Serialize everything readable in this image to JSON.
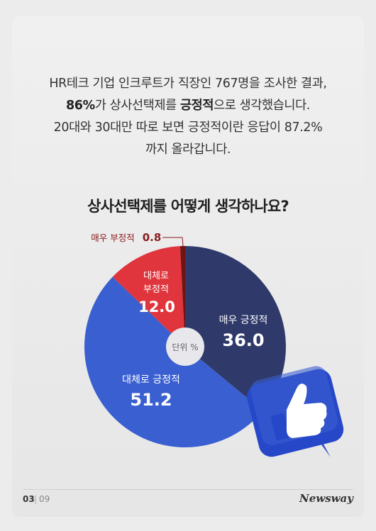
{
  "intro": {
    "line1": "HR테크 기업 인크루트가 직장인 767명을 조사한 결과,",
    "line2_bold1": "86%",
    "line2_mid": "가 상사선택제를 ",
    "line2_bold2": "긍정적",
    "line2_end": "으로 생각했습니다.",
    "line3": "20대와 30대만 따로 보면 긍정적이란 응답이 87.2%",
    "line4": "까지 올라갑니다."
  },
  "chart_data": {
    "type": "pie",
    "title": "상사선택제를 어떻게 생각하나요?",
    "unit_label": "단위 %",
    "slices": [
      {
        "label": "매우 긍정적",
        "value": 36.0,
        "display": "36.0",
        "color": "#2f3a6b"
      },
      {
        "label": "대체로 긍정적",
        "value": 51.2,
        "display": "51.2",
        "color": "#3a5fd0"
      },
      {
        "label": "대체로 부정적",
        "value": 12.0,
        "display": "12.0",
        "color": "#e0353d"
      },
      {
        "label": "매우 부정적",
        "value": 0.8,
        "display": "0.8",
        "color": "#6e1414"
      }
    ],
    "label_colors": {
      "inside": "#ffffff",
      "outside": "#8a1c1c"
    }
  },
  "footer": {
    "page_current": "03",
    "page_sep": "|",
    "page_total": "09",
    "brand": "Newsway"
  },
  "icon": {
    "name": "thumbs-up-icon",
    "bg": "#2747c9",
    "hand": "#ffffff"
  }
}
